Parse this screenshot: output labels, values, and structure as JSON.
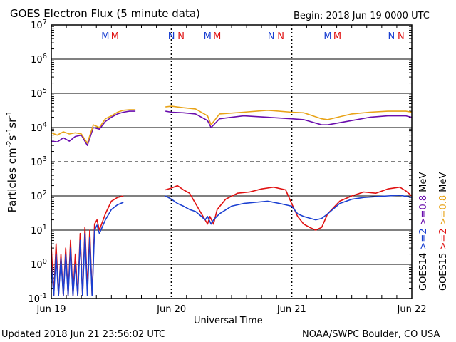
{
  "chart_data": {
    "type": "line",
    "title": "GOES Electron Flux (5 minute data)",
    "begin": "Begin: 2018 Jun 19 0000 UTC",
    "xlabel": "Universal Time",
    "ylabel_parts": [
      "Particles cm",
      "-2",
      "s",
      "-1",
      "sr",
      "-1"
    ],
    "x_ticks": [
      "Jun 19",
      "Jun 20",
      "Jun 21",
      "Jun 22"
    ],
    "y_scale": "log",
    "ylim": [
      0.1,
      10000000
    ],
    "y_ticks": [
      {
        "base": "10",
        "exp": "-1"
      },
      {
        "base": "10",
        "exp": "0"
      },
      {
        "base": "10",
        "exp": "1"
      },
      {
        "base": "10",
        "exp": "2"
      },
      {
        "base": "10",
        "exp": "3"
      },
      {
        "base": "10",
        "exp": "4"
      },
      {
        "base": "10",
        "exp": "5"
      },
      {
        "base": "10",
        "exp": "6"
      },
      {
        "base": "10",
        "exp": "7"
      }
    ],
    "dashed_level": 1000,
    "markers": [
      {
        "day": 0.45,
        "text": "M",
        "color": "#1a3fd1"
      },
      {
        "day": 0.53,
        "text": "M",
        "color": "#e01010"
      },
      {
        "day": 1.0,
        "text": "N",
        "color": "#1a3fd1"
      },
      {
        "day": 1.08,
        "text": "N",
        "color": "#e01010"
      },
      {
        "day": 1.3,
        "text": "M",
        "color": "#1a3fd1"
      },
      {
        "day": 1.38,
        "text": "M",
        "color": "#e01010"
      },
      {
        "day": 1.83,
        "text": "N",
        "color": "#1a3fd1"
      },
      {
        "day": 1.91,
        "text": "N",
        "color": "#e01010"
      },
      {
        "day": 2.3,
        "text": "M",
        "color": "#1a3fd1"
      },
      {
        "day": 2.38,
        "text": "M",
        "color": "#e01010"
      },
      {
        "day": 2.83,
        "text": "N",
        "color": "#1a3fd1"
      },
      {
        "day": 2.91,
        "text": "N",
        "color": "#e01010"
      }
    ],
    "legend": [
      {
        "sat": "GOES14",
        "label": ">=2",
        "color": "#1a3fd1"
      },
      {
        "sat": "GOES15",
        "label": ">=2",
        "color": "#e01010"
      },
      {
        "sat": "",
        "label": ">=0.8",
        "color": "#6a0dad"
      },
      {
        "sat": "",
        "label": ">=0.8",
        "color": "#e8a317"
      },
      {
        "sat": "",
        "label": "MeV",
        "color": "#000000"
      },
      {
        "sat": "",
        "label": "MeV",
        "color": "#000000"
      }
    ],
    "series": [
      {
        "color": "#6a0dad",
        "points": [
          [
            0.0,
            4000
          ],
          [
            0.05,
            3800
          ],
          [
            0.1,
            5000
          ],
          [
            0.15,
            4000
          ],
          [
            0.2,
            5500
          ],
          [
            0.25,
            6000
          ],
          [
            0.3,
            3000
          ],
          [
            0.35,
            10000
          ],
          [
            0.4,
            9000
          ],
          [
            0.45,
            15000
          ],
          [
            0.5,
            20000
          ],
          [
            0.55,
            25000
          ],
          [
            0.6,
            28000
          ],
          [
            0.65,
            30000
          ],
          [
            0.7,
            30000
          ],
          [
            0.75,
            null
          ],
          [
            0.95,
            30000
          ],
          [
            1.0,
            28000
          ],
          [
            1.1,
            27000
          ],
          [
            1.2,
            25000
          ],
          [
            1.3,
            16000
          ],
          [
            1.33,
            10000
          ],
          [
            1.4,
            18000
          ],
          [
            1.6,
            22000
          ],
          [
            1.8,
            20000
          ],
          [
            2.0,
            18000
          ],
          [
            2.1,
            17000
          ],
          [
            2.25,
            12000
          ],
          [
            2.3,
            12000
          ],
          [
            2.5,
            16000
          ],
          [
            2.65,
            20000
          ],
          [
            2.8,
            22000
          ],
          [
            2.95,
            22000
          ],
          [
            3.0,
            20000
          ]
        ]
      },
      {
        "color": "#e8a317",
        "points": [
          [
            0.0,
            7000
          ],
          [
            0.05,
            6000
          ],
          [
            0.1,
            7500
          ],
          [
            0.15,
            6500
          ],
          [
            0.2,
            7000
          ],
          [
            0.25,
            6500
          ],
          [
            0.3,
            3500
          ],
          [
            0.35,
            12000
          ],
          [
            0.4,
            10000
          ],
          [
            0.45,
            18000
          ],
          [
            0.5,
            22000
          ],
          [
            0.55,
            28000
          ],
          [
            0.6,
            32000
          ],
          [
            0.65,
            33000
          ],
          [
            0.7,
            33000
          ],
          [
            0.75,
            null
          ],
          [
            0.95,
            40000
          ],
          [
            1.0,
            42000
          ],
          [
            1.1,
            38000
          ],
          [
            1.2,
            35000
          ],
          [
            1.3,
            22000
          ],
          [
            1.33,
            12000
          ],
          [
            1.4,
            25000
          ],
          [
            1.6,
            28000
          ],
          [
            1.8,
            32000
          ],
          [
            2.0,
            28000
          ],
          [
            2.1,
            27000
          ],
          [
            2.25,
            18000
          ],
          [
            2.3,
            17000
          ],
          [
            2.5,
            25000
          ],
          [
            2.65,
            28000
          ],
          [
            2.8,
            30000
          ],
          [
            2.95,
            30000
          ],
          [
            3.0,
            28000
          ]
        ]
      },
      {
        "color": "#e01010",
        "points": [
          [
            0.0,
            3.5
          ],
          [
            0.02,
            0.12
          ],
          [
            0.04,
            4
          ],
          [
            0.06,
            0.12
          ],
          [
            0.08,
            2
          ],
          [
            0.1,
            0.12
          ],
          [
            0.12,
            3
          ],
          [
            0.14,
            0.12
          ],
          [
            0.16,
            5
          ],
          [
            0.18,
            0.12
          ],
          [
            0.2,
            2
          ],
          [
            0.22,
            0.12
          ],
          [
            0.24,
            8
          ],
          [
            0.26,
            0.12
          ],
          [
            0.28,
            12
          ],
          [
            0.3,
            0.2
          ],
          [
            0.32,
            10
          ],
          [
            0.34,
            0.12
          ],
          [
            0.36,
            15
          ],
          [
            0.38,
            20
          ],
          [
            0.4,
            10
          ],
          [
            0.45,
            30
          ],
          [
            0.5,
            70
          ],
          [
            0.55,
            90
          ],
          [
            0.6,
            100
          ],
          [
            0.65,
            null
          ],
          [
            0.95,
            150
          ],
          [
            1.0,
            170
          ],
          [
            1.05,
            200
          ],
          [
            1.1,
            150
          ],
          [
            1.15,
            120
          ],
          [
            1.2,
            60
          ],
          [
            1.25,
            30
          ],
          [
            1.28,
            20
          ],
          [
            1.3,
            15
          ],
          [
            1.32,
            25
          ],
          [
            1.35,
            15
          ],
          [
            1.38,
            40
          ],
          [
            1.45,
            80
          ],
          [
            1.55,
            120
          ],
          [
            1.65,
            130
          ],
          [
            1.75,
            160
          ],
          [
            1.85,
            180
          ],
          [
            1.95,
            150
          ],
          [
            2.0,
            60
          ],
          [
            2.05,
            25
          ],
          [
            2.1,
            15
          ],
          [
            2.15,
            12
          ],
          [
            2.2,
            10
          ],
          [
            2.25,
            12
          ],
          [
            2.3,
            30
          ],
          [
            2.4,
            70
          ],
          [
            2.5,
            100
          ],
          [
            2.6,
            130
          ],
          [
            2.7,
            120
          ],
          [
            2.8,
            160
          ],
          [
            2.9,
            180
          ],
          [
            2.95,
            140
          ],
          [
            3.0,
            100
          ]
        ]
      },
      {
        "color": "#1a3fd1",
        "points": [
          [
            0.0,
            1
          ],
          [
            0.02,
            0.12
          ],
          [
            0.04,
            2
          ],
          [
            0.06,
            0.12
          ],
          [
            0.08,
            1.5
          ],
          [
            0.1,
            0.12
          ],
          [
            0.12,
            2
          ],
          [
            0.14,
            0.12
          ],
          [
            0.16,
            3
          ],
          [
            0.18,
            0.12
          ],
          [
            0.2,
            1
          ],
          [
            0.22,
            0.12
          ],
          [
            0.24,
            5
          ],
          [
            0.26,
            0.12
          ],
          [
            0.28,
            8
          ],
          [
            0.3,
            0.12
          ],
          [
            0.32,
            6
          ],
          [
            0.34,
            0.12
          ],
          [
            0.36,
            10
          ],
          [
            0.38,
            14
          ],
          [
            0.4,
            8
          ],
          [
            0.45,
            20
          ],
          [
            0.5,
            40
          ],
          [
            0.55,
            55
          ],
          [
            0.6,
            65
          ],
          [
            0.65,
            null
          ],
          [
            0.95,
            100
          ],
          [
            1.0,
            80
          ],
          [
            1.05,
            60
          ],
          [
            1.1,
            50
          ],
          [
            1.15,
            40
          ],
          [
            1.2,
            35
          ],
          [
            1.25,
            25
          ],
          [
            1.28,
            20
          ],
          [
            1.3,
            25
          ],
          [
            1.33,
            15
          ],
          [
            1.35,
            20
          ],
          [
            1.4,
            30
          ],
          [
            1.5,
            50
          ],
          [
            1.6,
            60
          ],
          [
            1.7,
            65
          ],
          [
            1.8,
            70
          ],
          [
            1.9,
            60
          ],
          [
            2.0,
            50
          ],
          [
            2.05,
            30
          ],
          [
            2.1,
            25
          ],
          [
            2.2,
            20
          ],
          [
            2.25,
            22
          ],
          [
            2.3,
            30
          ],
          [
            2.4,
            60
          ],
          [
            2.5,
            80
          ],
          [
            2.6,
            90
          ],
          [
            2.7,
            95
          ],
          [
            2.8,
            100
          ],
          [
            2.9,
            105
          ],
          [
            3.0,
            90
          ]
        ]
      }
    ]
  },
  "footer": {
    "updated": "Updated 2018 Jun 21 23:56:02 UTC",
    "credit": "NOAA/SWPC Boulder, CO USA"
  }
}
